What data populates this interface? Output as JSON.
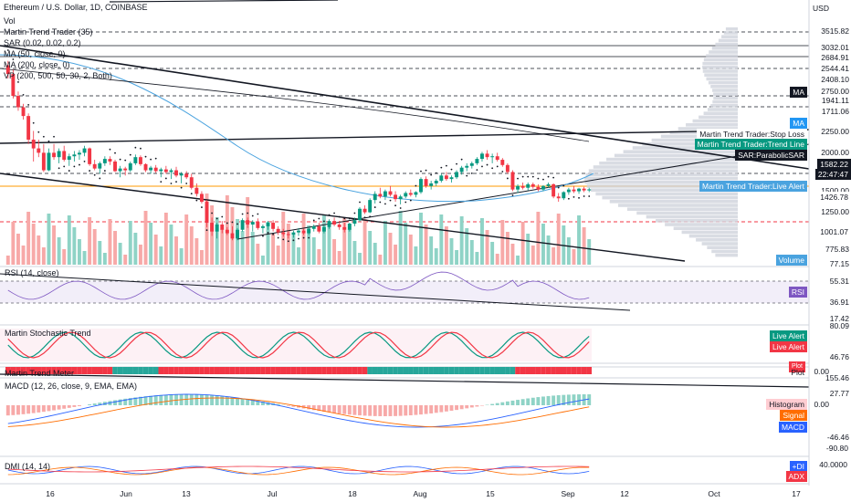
{
  "chart_data": {
    "type": "candlestick",
    "title": "Ethereum / U.S. Dollar, 1D, COINBASE",
    "currency": "USD",
    "indicators": [
      "Vol",
      "Martin Trend Trader (35)",
      "SAR (0.02, 0.02, 0.2)",
      "MA (50, close, 0)",
      "MA (200, close, 0)",
      "VP (200, 500, 50, 30, 2, Both)"
    ],
    "price_axis": [
      "3515.82",
      "3032.01",
      "2684.91",
      "2544.41",
      "2408.10",
      "2750.00",
      "1941.11",
      "1711.06",
      "2250.00",
      "2000.00",
      "1582.22",
      "22:47:47",
      "1500.00",
      "1426.78",
      "1250.00",
      "1001.07",
      "775.83",
      "77.15"
    ],
    "price_tags": [
      {
        "text": "MA",
        "color": "#131722"
      },
      {
        "text": "MA",
        "color": "#2196f3"
      },
      {
        "text": "Martin Trend Trader:Stop Loss",
        "color": "#ffffff"
      },
      {
        "text": "Martin Trend Trader:Trend Line",
        "color": "#089981"
      },
      {
        "text": "SAR:ParabolicSAR",
        "color": "#131722"
      },
      {
        "text": "Martin Trend Trader:Live Alert",
        "color": "#4aa3df"
      },
      {
        "text": "Volume",
        "color": "#4aa3df"
      }
    ],
    "last_price": 1582.22,
    "countdown": "22:47:47",
    "ohlc": [
      [
        3000,
        3050,
        2850,
        2900
      ],
      [
        2900,
        2950,
        2620,
        2650
      ],
      [
        2650,
        2700,
        2480,
        2520
      ],
      [
        2520,
        2560,
        2380,
        2420
      ],
      [
        2420,
        2450,
        2100,
        2150
      ],
      [
        2150,
        2250,
        1900,
        2050
      ],
      [
        2050,
        2150,
        1950,
        2000
      ],
      [
        2000,
        2100,
        1780,
        1800
      ],
      [
        1800,
        2050,
        1790,
        2000
      ],
      [
        2000,
        2100,
        1920,
        1950
      ],
      [
        1950,
        2050,
        1880,
        2020
      ],
      [
        2020,
        2080,
        1900,
        1920
      ],
      [
        1920,
        1990,
        1850,
        1960
      ],
      [
        1960,
        2020,
        1900,
        1980
      ],
      [
        1980,
        2030,
        1920,
        2000
      ],
      [
        2000,
        2080,
        1960,
        2050
      ],
      [
        2050,
        2060,
        1850,
        1870
      ],
      [
        1870,
        1920,
        1800,
        1820
      ],
      [
        1820,
        1900,
        1760,
        1880
      ],
      [
        1880,
        1960,
        1850,
        1930
      ],
      [
        1930,
        1960,
        1860,
        1900
      ],
      [
        1900,
        1920,
        1780,
        1790
      ],
      [
        1790,
        1850,
        1720,
        1820
      ],
      [
        1820,
        1840,
        1740,
        1800
      ],
      [
        1800,
        1900,
        1780,
        1880
      ],
      [
        1880,
        1980,
        1860,
        1950
      ],
      [
        1950,
        1970,
        1850,
        1870
      ],
      [
        1870,
        1880,
        1780,
        1800
      ],
      [
        1800,
        1850,
        1760,
        1830
      ],
      [
        1830,
        1860,
        1770,
        1790
      ],
      [
        1790,
        1830,
        1720,
        1810
      ],
      [
        1810,
        1850,
        1760,
        1780
      ],
      [
        1780,
        1820,
        1700,
        1800
      ],
      [
        1800,
        1840,
        1720,
        1740
      ],
      [
        1740,
        1780,
        1650,
        1760
      ],
      [
        1760,
        1790,
        1700,
        1720
      ],
      [
        1720,
        1760,
        1580,
        1600
      ],
      [
        1600,
        1650,
        1500,
        1530
      ],
      [
        1530,
        1560,
        1420,
        1440
      ],
      [
        1440,
        1460,
        1150,
        1200
      ],
      [
        1200,
        1260,
        1050,
        1100
      ],
      [
        1100,
        1200,
        1020,
        1180
      ],
      [
        1180,
        1220,
        1080,
        1120
      ],
      [
        1120,
        1150,
        1060,
        1080
      ],
      [
        1080,
        1160,
        1000,
        1020
      ],
      [
        1020,
        1140,
        1000,
        1120
      ],
      [
        1120,
        1250,
        1100,
        1230
      ],
      [
        1230,
        1260,
        1140,
        1180
      ],
      [
        1180,
        1230,
        1100,
        1210
      ],
      [
        1210,
        1250,
        1120,
        1140
      ],
      [
        1140,
        1180,
        1080,
        1160
      ],
      [
        1160,
        1220,
        1120,
        1200
      ],
      [
        1200,
        1230,
        1100,
        1130
      ],
      [
        1130,
        1160,
        1060,
        1090
      ],
      [
        1090,
        1130,
        1040,
        1070
      ],
      [
        1070,
        1100,
        1020,
        1060
      ],
      [
        1060,
        1110,
        1030,
        1090
      ],
      [
        1090,
        1140,
        1050,
        1110
      ],
      [
        1110,
        1130,
        1060,
        1080
      ],
      [
        1080,
        1150,
        1060,
        1130
      ],
      [
        1130,
        1180,
        1100,
        1160
      ],
      [
        1160,
        1200,
        1080,
        1100
      ],
      [
        1100,
        1170,
        1080,
        1150
      ],
      [
        1150,
        1240,
        1130,
        1220
      ],
      [
        1220,
        1260,
        1160,
        1180
      ],
      [
        1180,
        1220,
        1120,
        1150
      ],
      [
        1150,
        1200,
        1090,
        1120
      ],
      [
        1120,
        1200,
        1100,
        1190
      ],
      [
        1190,
        1260,
        1160,
        1230
      ],
      [
        1230,
        1380,
        1210,
        1360
      ],
      [
        1360,
        1400,
        1300,
        1320
      ],
      [
        1320,
        1480,
        1310,
        1460
      ],
      [
        1460,
        1560,
        1420,
        1530
      ],
      [
        1530,
        1600,
        1480,
        1500
      ],
      [
        1500,
        1580,
        1460,
        1560
      ],
      [
        1560,
        1620,
        1500,
        1520
      ],
      [
        1520,
        1560,
        1440,
        1470
      ],
      [
        1470,
        1520,
        1410,
        1500
      ],
      [
        1500,
        1560,
        1480,
        1540
      ],
      [
        1540,
        1580,
        1500,
        1520
      ],
      [
        1520,
        1560,
        1490,
        1550
      ],
      [
        1550,
        1720,
        1530,
        1700
      ],
      [
        1700,
        1730,
        1600,
        1620
      ],
      [
        1620,
        1680,
        1580,
        1650
      ],
      [
        1650,
        1700,
        1620,
        1680
      ],
      [
        1680,
        1760,
        1660,
        1740
      ],
      [
        1740,
        1780,
        1680,
        1700
      ],
      [
        1700,
        1740,
        1660,
        1720
      ],
      [
        1720,
        1800,
        1700,
        1780
      ],
      [
        1780,
        1850,
        1750,
        1830
      ],
      [
        1830,
        1880,
        1790,
        1850
      ],
      [
        1850,
        1900,
        1820,
        1880
      ],
      [
        1880,
        1950,
        1860,
        1930
      ],
      [
        1930,
        2010,
        1900,
        1990
      ],
      [
        1990,
        2030,
        1920,
        1950
      ],
      [
        1950,
        1990,
        1880,
        1960
      ],
      [
        1960,
        2000,
        1900,
        1920
      ],
      [
        1920,
        1940,
        1840,
        1860
      ],
      [
        1860,
        1880,
        1760,
        1780
      ],
      [
        1780,
        1800,
        1560,
        1580
      ],
      [
        1580,
        1640,
        1540,
        1620
      ],
      [
        1620,
        1660,
        1580,
        1600
      ],
      [
        1600,
        1660,
        1570,
        1640
      ],
      [
        1640,
        1660,
        1590,
        1610
      ],
      [
        1610,
        1640,
        1560,
        1580
      ],
      [
        1580,
        1630,
        1560,
        1620
      ],
      [
        1620,
        1660,
        1600,
        1640
      ],
      [
        1640,
        1650,
        1480,
        1500
      ],
      [
        1500,
        1540,
        1440,
        1480
      ],
      [
        1480,
        1560,
        1460,
        1550
      ],
      [
        1550,
        1600,
        1520,
        1580
      ],
      [
        1580,
        1620,
        1540,
        1560
      ],
      [
        1560,
        1600,
        1530,
        1590
      ],
      [
        1590,
        1610,
        1550,
        1570
      ],
      [
        1570,
        1600,
        1550,
        1582
      ]
    ],
    "volume_labels": [
      "Volume"
    ],
    "x_axis": [
      "16",
      "Jun",
      "13",
      "Jul",
      "18",
      "Aug",
      "15",
      "Sep",
      "12",
      "Oct",
      "17"
    ],
    "panes": [
      {
        "name": "RSI (14, close)",
        "axis": [
          "55.31",
          "36.91",
          "17.42"
        ],
        "tag": "RSI"
      },
      {
        "name": "Martin Stochastic Trend",
        "axis": [
          "80.09",
          "46.76"
        ],
        "tags": [
          "Live Alert",
          "Live Alert",
          "Plot"
        ]
      },
      {
        "name": "Martin Trend Meter",
        "axis": [
          "155.46",
          "0.00"
        ],
        "tags": [
          "Plot"
        ]
      },
      {
        "name": "MACD (12, 26, close, 9, EMA, EMA)",
        "axis": [
          "27.77",
          "0.00",
          "-46.46",
          "-90.80"
        ],
        "tags": [
          "Histogram",
          "Signal",
          "MACD"
        ]
      },
      {
        "name": "DMI (14, 14)",
        "axis": [
          "40.0000"
        ],
        "tags": [
          "+DI",
          "ADX"
        ]
      }
    ]
  }
}
